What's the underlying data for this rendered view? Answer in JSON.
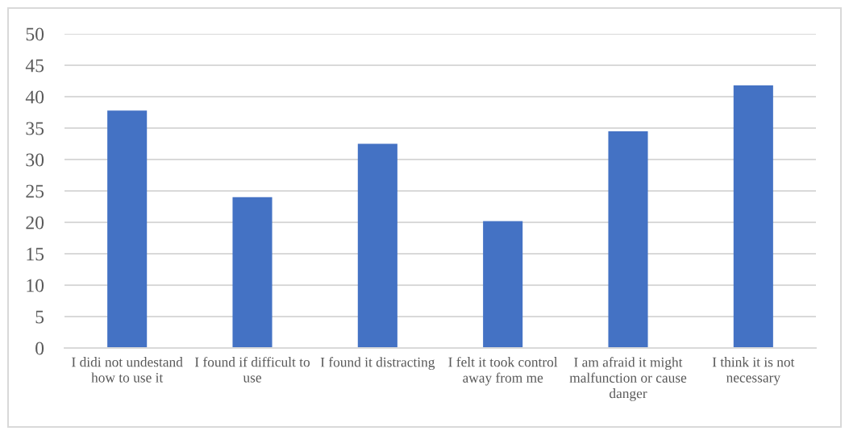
{
  "chart_data": {
    "type": "bar",
    "categories": [
      "I didi not undestand how to use it",
      "I found if difficult to use",
      "I found it distracting",
      "I felt it took control away from me",
      "I am afraid it might malfunction or cause danger",
      "I think it is not necessary"
    ],
    "values": [
      37.8,
      24.0,
      32.5,
      20.2,
      34.5,
      41.8
    ],
    "color": "#4472c4",
    "ylim": [
      0,
      50
    ],
    "yticks": [
      0,
      5,
      10,
      15,
      20,
      25,
      30,
      35,
      40,
      45,
      50
    ],
    "grid": "y"
  }
}
